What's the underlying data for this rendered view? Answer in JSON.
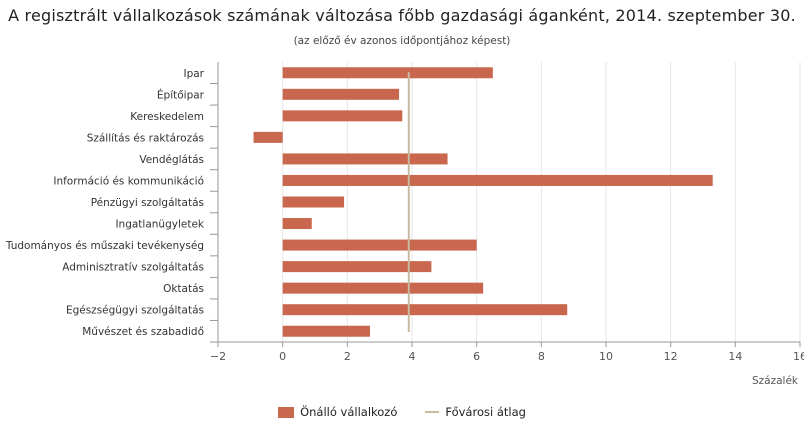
{
  "chart_data": {
    "type": "bar",
    "orientation": "horizontal",
    "title": "A regisztrált vállalkozások számának változása főbb gazdasági áganként, 2014. szeptember 30.",
    "subtitle": "(az előző év azonos időpontjához képest)",
    "categories": [
      "Ipar",
      "Építőipar",
      "Kereskedelem",
      "Szállítás és raktározás",
      "Vendéglátás",
      "Információ és kommunikáció",
      "Pénzügyi szolgáltatás",
      "Ingatlanügyletek",
      "Tudományos és műszaki tevékenység",
      "Adminisztratív szolgáltatás",
      "Oktatás",
      "Egészségügyi szolgáltatás",
      "Művészet és szabadidő"
    ],
    "series": [
      {
        "name": "Önálló vállalkozó",
        "type": "bar",
        "color": "#c9674e",
        "values": [
          6.5,
          3.6,
          3.7,
          -0.9,
          5.1,
          13.3,
          1.9,
          0.9,
          6.0,
          4.6,
          6.2,
          8.8,
          2.7
        ]
      },
      {
        "name": "Fővárosi átlag",
        "type": "reference-line",
        "color": "#c8b9a0",
        "value": 3.9
      }
    ],
    "xlabel": "Százalék",
    "ylabel": "",
    "xlim": [
      -2,
      16
    ],
    "xticks": [
      "−2",
      "0",
      "2",
      "4",
      "6",
      "8",
      "10",
      "12",
      "14",
      "16"
    ],
    "grid": "vertical",
    "legend_position": "bottom-center"
  }
}
